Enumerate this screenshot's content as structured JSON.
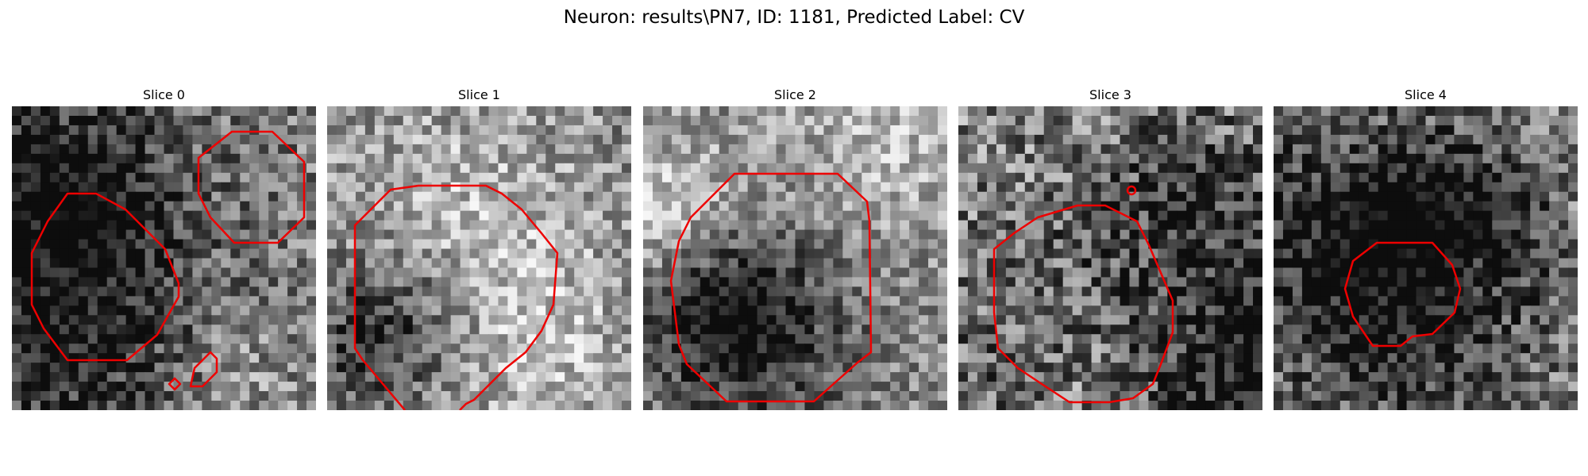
{
  "figure": {
    "title": "Neuron: results\\PN7, ID: 1181, Predicted Label: CV"
  },
  "contour_color": "#ee0000",
  "colormap": "grayscale",
  "panels": [
    {
      "title": "Slice 0",
      "seed": 11,
      "base": 0.48,
      "contrast": 0.28
    },
    {
      "title": "Slice 1",
      "seed": 23,
      "base": 0.52,
      "contrast": 0.26
    },
    {
      "title": "Slice 2",
      "seed": 37,
      "base": 0.55,
      "contrast": 0.24
    },
    {
      "title": "Slice 3",
      "seed": 41,
      "base": 0.5,
      "contrast": 0.34
    },
    {
      "title": "Slice 4",
      "seed": 53,
      "base": 0.56,
      "contrast": 0.3
    }
  ]
}
